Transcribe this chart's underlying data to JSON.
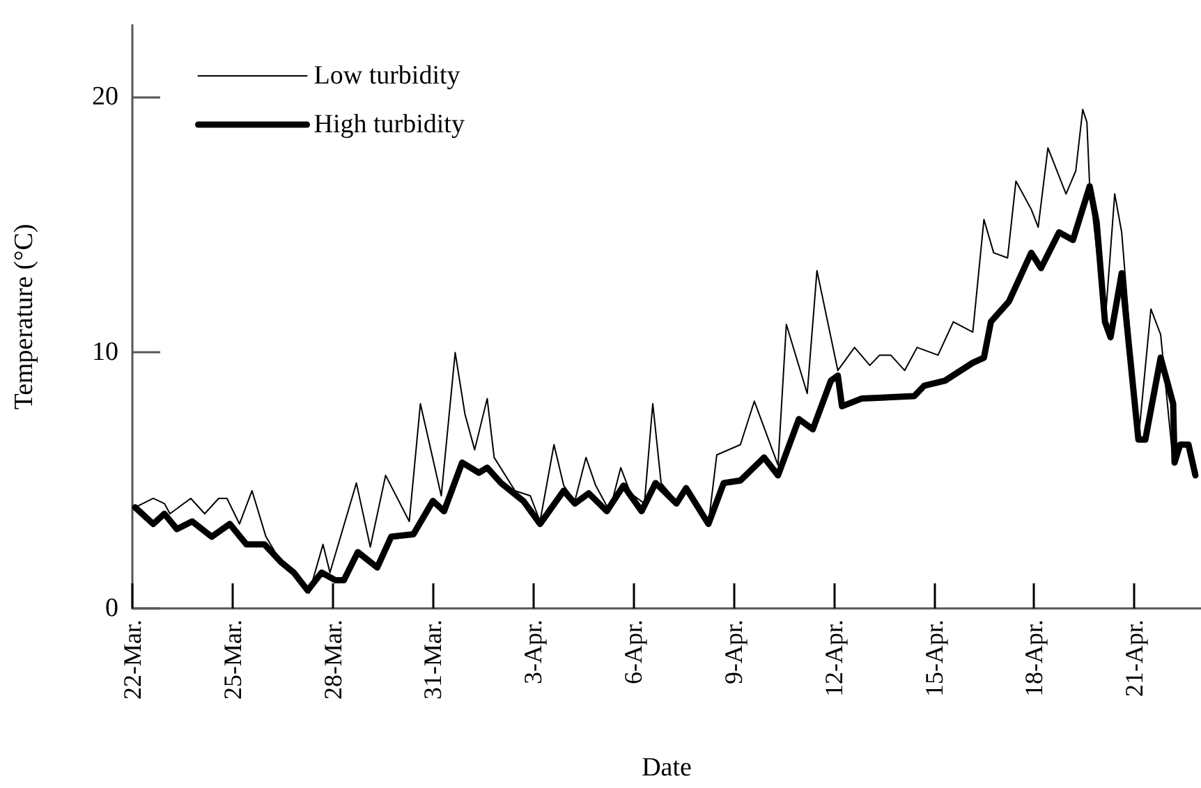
{
  "chart_data": {
    "type": "line",
    "xlabel": "Date",
    "ylabel": "Temperature (°C)",
    "xlim": [
      "--03-22",
      "--04-23"
    ],
    "xticks": [
      {
        "value": "--03-22",
        "label": "22-Mar."
      },
      {
        "value": "--03-25",
        "label": "25-Mar."
      },
      {
        "value": "--03-28",
        "label": "28-Mar."
      },
      {
        "value": "--03-31",
        "label": "31-Mar."
      },
      {
        "value": "--04-03",
        "label": "3-Apr."
      },
      {
        "value": "--04-06",
        "label": "6-Apr."
      },
      {
        "value": "--04-09",
        "label": "9-Apr."
      },
      {
        "value": "--04-12",
        "label": "12-Apr."
      },
      {
        "value": "--04-15",
        "label": "15-Apr."
      },
      {
        "value": "--04-18",
        "label": "18-Apr."
      },
      {
        "value": "--04-21",
        "label": "21-Apr."
      }
    ],
    "ylim": [
      0,
      22.8
    ],
    "yticks": [
      0,
      10,
      20
    ],
    "grid": false,
    "legend": "top left",
    "marker": "none",
    "line_style": "solid",
    "series": [
      {
        "name": "Low turbidity",
        "color": "#000000",
        "x": [
          "--03-22T02:00",
          "--03-22T15:00",
          "--03-22T23:00",
          "--03-23T03:00",
          "--03-23T18:00",
          "--03-24T04:00",
          "--03-24T14:00",
          "--03-24T20:00",
          "--03-25T05:00",
          "--03-25T14:00",
          "--03-26T00:00",
          "--03-26T11:00",
          "--03-26T20:00",
          "--03-27T07:00",
          "--03-27T17:00",
          "--03-27T22:00",
          "--03-28T17:00",
          "--03-29T03:00",
          "--03-29T14:00",
          "--03-30T07:00",
          "--03-30T15:00",
          "--03-31T06:00",
          "--03-31T16:00",
          "--03-31T23:00",
          "--04-01T06:00",
          "--04-01T15:00",
          "--04-01T20:00",
          "--04-02T11:00",
          "--04-02T22:00",
          "--04-03T05:00",
          "--04-03T15:00",
          "--04-03T22:00",
          "--04-04T06:00",
          "--04-04T14:00",
          "--04-04T21:00",
          "--04-05T07:00",
          "--04-05T15:00",
          "--04-05T22:00",
          "--04-06T08:00",
          "--04-06T14:00",
          "--04-06T20:00",
          "--04-07T07:00",
          "--04-07T14:00",
          "--04-08T06:00",
          "--04-08T12:00",
          "--04-09T05:00",
          "--04-09T15:00",
          "--04-10T08:00",
          "--04-10T14:00",
          "--04-11T05:00",
          "--04-11T12:00",
          "--04-12T03:00",
          "--04-12T15:00",
          "--04-13T02:00",
          "--04-13T09:00",
          "--04-13T17:00",
          "--04-14T03:00",
          "--04-14T12:00",
          "--04-15T03:00",
          "--04-15T14:00",
          "--04-16T04:00",
          "--04-16T12:00",
          "--04-16T19:00",
          "--04-17T05:00",
          "--04-17T11:00",
          "--04-17T22:00",
          "--04-18T03:00",
          "--04-18T10:00",
          "--04-18T23:00",
          "--04-19T06:00",
          "--04-19T11:00",
          "--04-19T14:00",
          "--04-19T16:00",
          "--04-20T03:00",
          "--04-20T10:00",
          "--04-20T15:00",
          "--04-21T03:00",
          "--04-21T12:00",
          "--04-21T19:00",
          "--04-22T04:00",
          "--04-22T10:00",
          "--04-22T15:00",
          "--04-22T20:00"
        ],
        "values": [
          3.95,
          4.3,
          4.1,
          3.7,
          4.3,
          3.7,
          4.3,
          4.3,
          3.3,
          4.6,
          2.8,
          1.8,
          1.4,
          0.6,
          2.5,
          1.4,
          4.9,
          2.4,
          5.2,
          3.4,
          8.0,
          4.4,
          10.0,
          7.6,
          6.2,
          8.2,
          5.9,
          4.6,
          4.4,
          3.4,
          6.4,
          4.8,
          4.2,
          5.9,
          4.8,
          3.8,
          5.5,
          4.5,
          4.1,
          8.0,
          4.9,
          4.2,
          4.8,
          3.3,
          6.0,
          6.4,
          8.1,
          5.6,
          11.1,
          8.4,
          13.2,
          9.3,
          10.2,
          9.5,
          9.9,
          9.9,
          9.3,
          10.2,
          9.9,
          11.2,
          10.8,
          15.2,
          13.9,
          13.7,
          16.7,
          15.6,
          14.9,
          18.0,
          16.2,
          17.1,
          19.5,
          19.0,
          16.5,
          11.1,
          16.2,
          14.7,
          6.6,
          11.7,
          10.7,
          5.7,
          6.5,
          6.4,
          5.2
        ]
      },
      {
        "name": "High turbidity",
        "color": "#000000",
        "x": [
          "--03-22T02:00",
          "--03-22T15:00",
          "--03-22T23:00",
          "--03-23T08:00",
          "--03-23T19:00",
          "--03-24T09:00",
          "--03-24T22:00",
          "--03-25T10:00",
          "--03-25T23:00",
          "--03-26T11:00",
          "--03-26T20:00",
          "--03-27T06:00",
          "--03-27T16:00",
          "--03-28T02:00",
          "--03-28T08:00",
          "--03-28T18:00",
          "--03-29T08:00",
          "--03-29T18:00",
          "--03-30T10:00",
          "--03-31T00:00",
          "--03-31T08:00",
          "--03-31T21:00",
          "--04-01T09:00",
          "--04-01T15:00",
          "--04-02T01:00",
          "--04-02T17:00",
          "--04-03T05:00",
          "--04-03T22:00",
          "--04-04T06:00",
          "--04-04T16:00",
          "--04-05T05:00",
          "--04-05T17:00",
          "--04-06T06:00",
          "--04-06T16:00",
          "--04-07T07:00",
          "--04-07T14:00",
          "--04-08T06:00",
          "--04-08T17:00",
          "--04-09T05:00",
          "--04-09T22:00",
          "--04-10T08:00",
          "--04-10T23:00",
          "--04-11T09:00",
          "--04-11T22:00",
          "--04-12T03:00",
          "--04-12T06:00",
          "--04-12T20:00",
          "--04-14T10:00",
          "--04-14T17:00",
          "--04-15T08:00",
          "--04-16T04:00",
          "--04-16T12:00",
          "--04-16T17:00",
          "--04-17T06:00",
          "--04-17T22:00",
          "--04-18T05:00",
          "--04-18T18:00",
          "--04-19T04:00",
          "--04-19T16:00",
          "--04-19T21:00",
          "--04-20T03:00",
          "--04-20T07:00",
          "--04-20T15:00",
          "--04-21T03:00",
          "--04-21T08:00",
          "--04-21T19:00",
          "--04-22T04:00",
          "--04-22T05:00",
          "--04-22T09:00",
          "--04-22T15:00",
          "--04-22T20:00"
        ],
        "values": [
          3.95,
          3.3,
          3.7,
          3.1,
          3.4,
          2.8,
          3.3,
          2.5,
          2.5,
          1.8,
          1.4,
          0.7,
          1.4,
          1.1,
          1.1,
          2.2,
          1.6,
          2.8,
          2.9,
          4.2,
          3.8,
          5.7,
          5.3,
          5.5,
          4.9,
          4.2,
          3.3,
          4.6,
          4.1,
          4.5,
          3.8,
          4.8,
          3.8,
          4.9,
          4.1,
          4.7,
          3.3,
          4.9,
          5.0,
          5.9,
          5.2,
          7.4,
          7.0,
          8.9,
          9.1,
          7.9,
          8.2,
          8.3,
          8.7,
          8.9,
          9.6,
          9.8,
          11.2,
          12.0,
          13.9,
          13.3,
          14.7,
          14.4,
          16.5,
          15.1,
          11.2,
          10.6,
          13.1,
          6.6,
          6.6,
          9.8,
          8.0,
          5.7,
          6.4,
          6.4,
          5.2
        ]
      }
    ]
  }
}
